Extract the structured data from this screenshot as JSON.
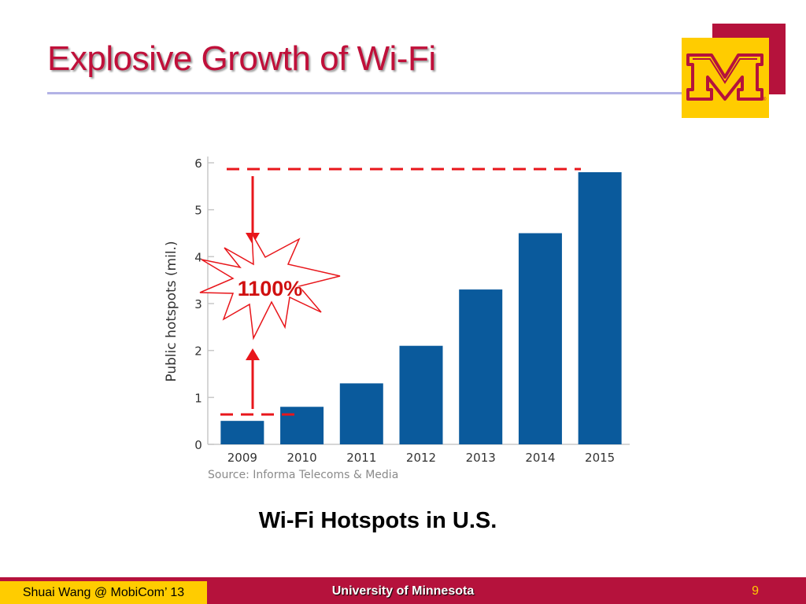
{
  "slide": {
    "title": "Explosive Growth of Wi-Fi",
    "caption": "Wi-Fi Hotspots in U.S.",
    "callout": "1100%",
    "footer_author": "Shuai Wang @ MobiCom’ 13",
    "footer_org": "University of Minnesota",
    "page_number": "9",
    "logo_letter": "M",
    "colors": {
      "maroon": "#b5123c",
      "gold": "#ffcc00",
      "title_red": "#c0103a",
      "bar_blue": "#0a5a9c",
      "dash_red": "#e8161b"
    }
  },
  "chart_data": {
    "type": "bar",
    "categories": [
      "2009",
      "2010",
      "2011",
      "2012",
      "2013",
      "2014",
      "2015"
    ],
    "values": [
      0.5,
      0.8,
      1.3,
      2.1,
      3.3,
      4.5,
      5.8
    ],
    "title": "",
    "ylabel": "Public hotspots (mil.)",
    "xlabel": "",
    "ylim": [
      0,
      6
    ],
    "yticks": [
      "0",
      "1",
      "2",
      "3",
      "4",
      "5",
      "6"
    ],
    "source": "Source: Informa Telecoms & Media",
    "grid": false
  }
}
